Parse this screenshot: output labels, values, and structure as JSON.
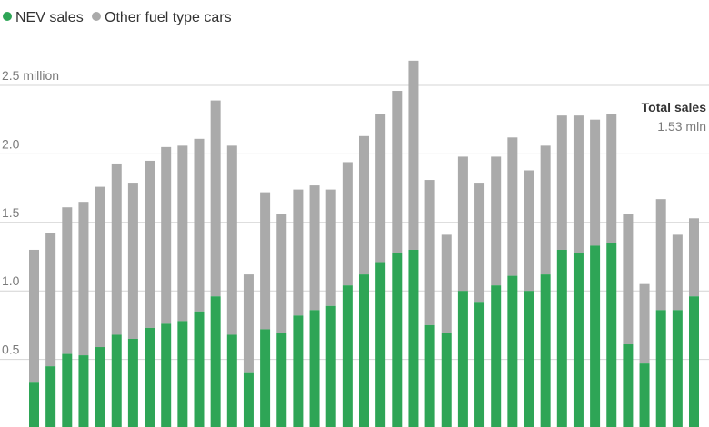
{
  "chart_data": {
    "type": "bar",
    "stacked": true,
    "legend": {
      "placement": "top-left",
      "items": [
        {
          "label": "NEV sales",
          "color": "#2ea556"
        },
        {
          "label": "Other fuel type cars",
          "color": "#aaaaaa"
        }
      ]
    },
    "ylim": [
      0,
      2.5
    ],
    "yticks": [
      {
        "value": 0.5,
        "label": "0.5"
      },
      {
        "value": 1.0,
        "label": "1.0"
      },
      {
        "value": 1.5,
        "label": "1.5"
      },
      {
        "value": 2.0,
        "label": "2.0"
      },
      {
        "value": 2.5,
        "label": "2.5 million"
      }
    ],
    "grid": true,
    "series": [
      {
        "name": "NEV sales",
        "color": "#2ea556",
        "values": [
          0.33,
          0.45,
          0.54,
          0.53,
          0.59,
          0.68,
          0.65,
          0.73,
          0.76,
          0.78,
          0.85,
          0.96,
          0.68,
          0.4,
          0.72,
          0.69,
          0.82,
          0.86,
          0.89,
          1.04,
          1.12,
          1.21,
          1.28,
          1.3,
          0.75,
          0.69,
          1.0,
          0.92,
          1.04,
          1.11,
          1.0,
          1.12,
          1.3,
          1.28,
          1.33,
          1.35,
          0.61,
          0.47,
          0.86,
          0.86,
          0.96
        ]
      },
      {
        "name": "Other fuel type cars",
        "color": "#aaaaaa",
        "values": [
          0.97,
          0.97,
          1.07,
          1.12,
          1.17,
          1.25,
          1.14,
          1.22,
          1.29,
          1.28,
          1.26,
          1.43,
          1.38,
          0.72,
          1.0,
          0.87,
          0.92,
          0.91,
          0.85,
          0.9,
          1.01,
          1.08,
          1.18,
          1.38,
          1.06,
          0.72,
          0.98,
          0.87,
          0.94,
          1.01,
          0.88,
          0.94,
          0.98,
          1.0,
          0.92,
          0.94,
          0.95,
          0.58,
          0.81,
          0.55,
          0.57
        ]
      }
    ],
    "annotation": {
      "title": "Total sales",
      "value": "1.53 mln",
      "target_index": 40
    }
  }
}
